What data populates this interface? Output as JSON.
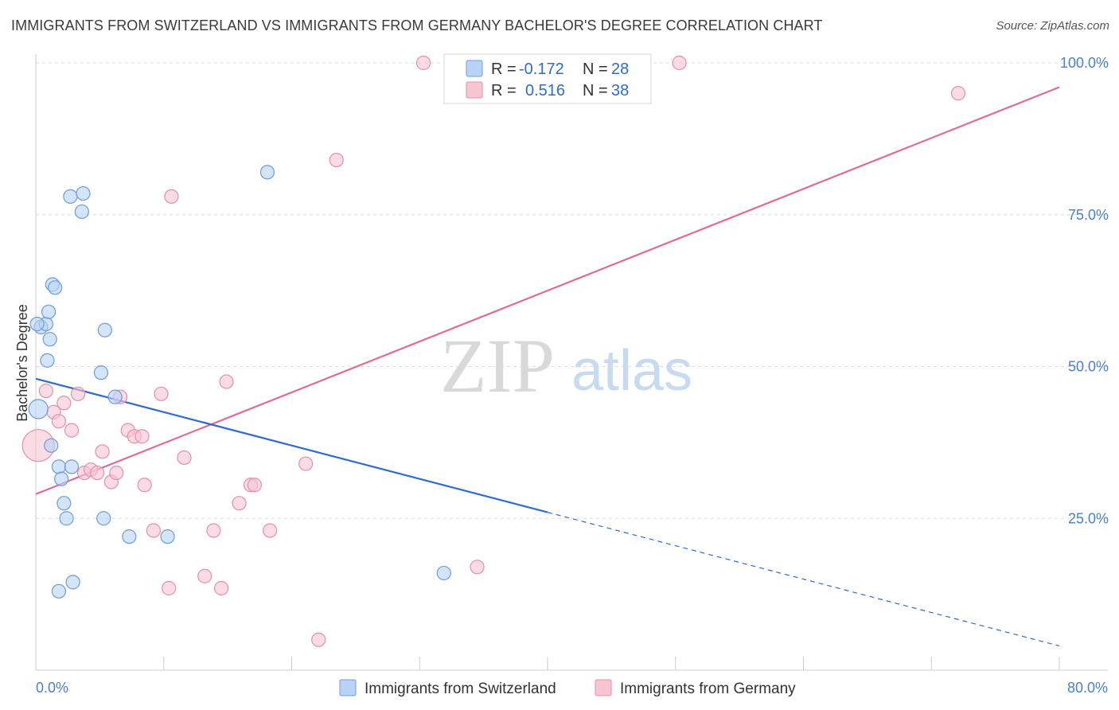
{
  "title": "IMMIGRANTS FROM SWITZERLAND VS IMMIGRANTS FROM GERMANY BACHELOR'S DEGREE CORRELATION CHART",
  "source": "Source: ZipAtlas.com",
  "watermark": {
    "zip": "ZIP",
    "atlas": "atlas"
  },
  "colors": {
    "switzerland_fill": "#b8d3f5",
    "switzerland_stroke": "#6c9be0",
    "switzerland_line": "#2e6bd1",
    "germany_fill": "#f8c5d3",
    "germany_stroke": "#e58fa8",
    "germany_line": "#e06b93",
    "tick_label": "#4a7fcf",
    "grid": "#dddddd"
  },
  "legend": {
    "r_label": "R =",
    "n_label": "N =",
    "rows": [
      {
        "r": "-0.172",
        "n": "28"
      },
      {
        "r": "0.516",
        "n": "38"
      }
    ]
  },
  "bottom_legend": [
    "Immigrants from Switzerland",
    "Immigrants from Germany"
  ],
  "chart_data": {
    "type": "scatter",
    "title": "IMMIGRANTS FROM SWITZERLAND VS IMMIGRANTS FROM GERMANY BACHELOR'S DEGREE CORRELATION CHART",
    "xlabel": "",
    "ylabel": "Bachelor's Degree",
    "xlim": [
      0,
      80
    ],
    "ylim": [
      0,
      100
    ],
    "x_tick_labels": [
      "0.0%",
      "80.0%"
    ],
    "y_ticks": [
      25,
      50,
      75,
      100
    ],
    "y_tick_labels": [
      "25.0%",
      "50.0%",
      "75.0%",
      "100.0%"
    ],
    "grid": true,
    "legend_position": "top-center",
    "series": [
      {
        "name": "Immigrants from Switzerland",
        "r": -0.172,
        "n": 28,
        "points": [
          [
            0.2,
            43.0
          ],
          [
            0.4,
            56.5
          ],
          [
            0.8,
            57.0
          ],
          [
            0.9,
            51.0
          ],
          [
            1.0,
            59.0
          ],
          [
            1.1,
            54.5
          ],
          [
            1.3,
            63.5
          ],
          [
            1.5,
            63.0
          ],
          [
            1.2,
            37.0
          ],
          [
            1.8,
            33.5
          ],
          [
            2.0,
            31.5
          ],
          [
            2.2,
            27.5
          ],
          [
            2.4,
            25.0
          ],
          [
            2.7,
            78.0
          ],
          [
            2.8,
            33.5
          ],
          [
            2.9,
            14.5
          ],
          [
            1.8,
            13.0
          ],
          [
            3.6,
            75.5
          ],
          [
            3.7,
            78.5
          ],
          [
            5.1,
            49.0
          ],
          [
            5.3,
            25.0
          ],
          [
            5.4,
            56.0
          ],
          [
            6.2,
            45.0
          ],
          [
            7.3,
            22.0
          ],
          [
            10.3,
            22.0
          ],
          [
            18.1,
            82.0
          ],
          [
            31.9,
            16.0
          ],
          [
            0.1,
            57.0
          ]
        ],
        "trend": {
          "x0": 0,
          "y0": 48.0,
          "x1": 40,
          "y1": 26.0,
          "dashed_to_x": 80,
          "dashed_to_y": 4.0
        }
      },
      {
        "name": "Immigrants from Germany",
        "r": 0.516,
        "n": 38,
        "points": [
          [
            0.2,
            37.0
          ],
          [
            0.8,
            46.0
          ],
          [
            1.4,
            42.5
          ],
          [
            1.8,
            41.0
          ],
          [
            2.2,
            44.0
          ],
          [
            2.8,
            39.5
          ],
          [
            3.3,
            45.5
          ],
          [
            3.8,
            32.5
          ],
          [
            4.3,
            33.0
          ],
          [
            4.8,
            32.5
          ],
          [
            5.2,
            36.0
          ],
          [
            5.9,
            31.0
          ],
          [
            6.3,
            32.5
          ],
          [
            6.6,
            45.0
          ],
          [
            7.2,
            39.5
          ],
          [
            7.7,
            38.5
          ],
          [
            8.3,
            38.5
          ],
          [
            8.5,
            30.5
          ],
          [
            9.2,
            23.0
          ],
          [
            9.8,
            45.5
          ],
          [
            10.4,
            13.5
          ],
          [
            10.6,
            78.0
          ],
          [
            11.6,
            35.0
          ],
          [
            13.2,
            15.5
          ],
          [
            13.9,
            23.0
          ],
          [
            14.5,
            13.5
          ],
          [
            14.9,
            47.5
          ],
          [
            15.9,
            27.5
          ],
          [
            16.8,
            30.5
          ],
          [
            17.1,
            30.5
          ],
          [
            18.3,
            23.0
          ],
          [
            21.1,
            34.0
          ],
          [
            22.1,
            5.0
          ],
          [
            23.5,
            84.0
          ],
          [
            30.3,
            100.0
          ],
          [
            34.5,
            17.0
          ],
          [
            50.3,
            100.0
          ],
          [
            72.1,
            95.0
          ]
        ],
        "trend": {
          "x0": 0,
          "y0": 29.0,
          "x1": 80,
          "y1": 96.0
        }
      }
    ]
  }
}
